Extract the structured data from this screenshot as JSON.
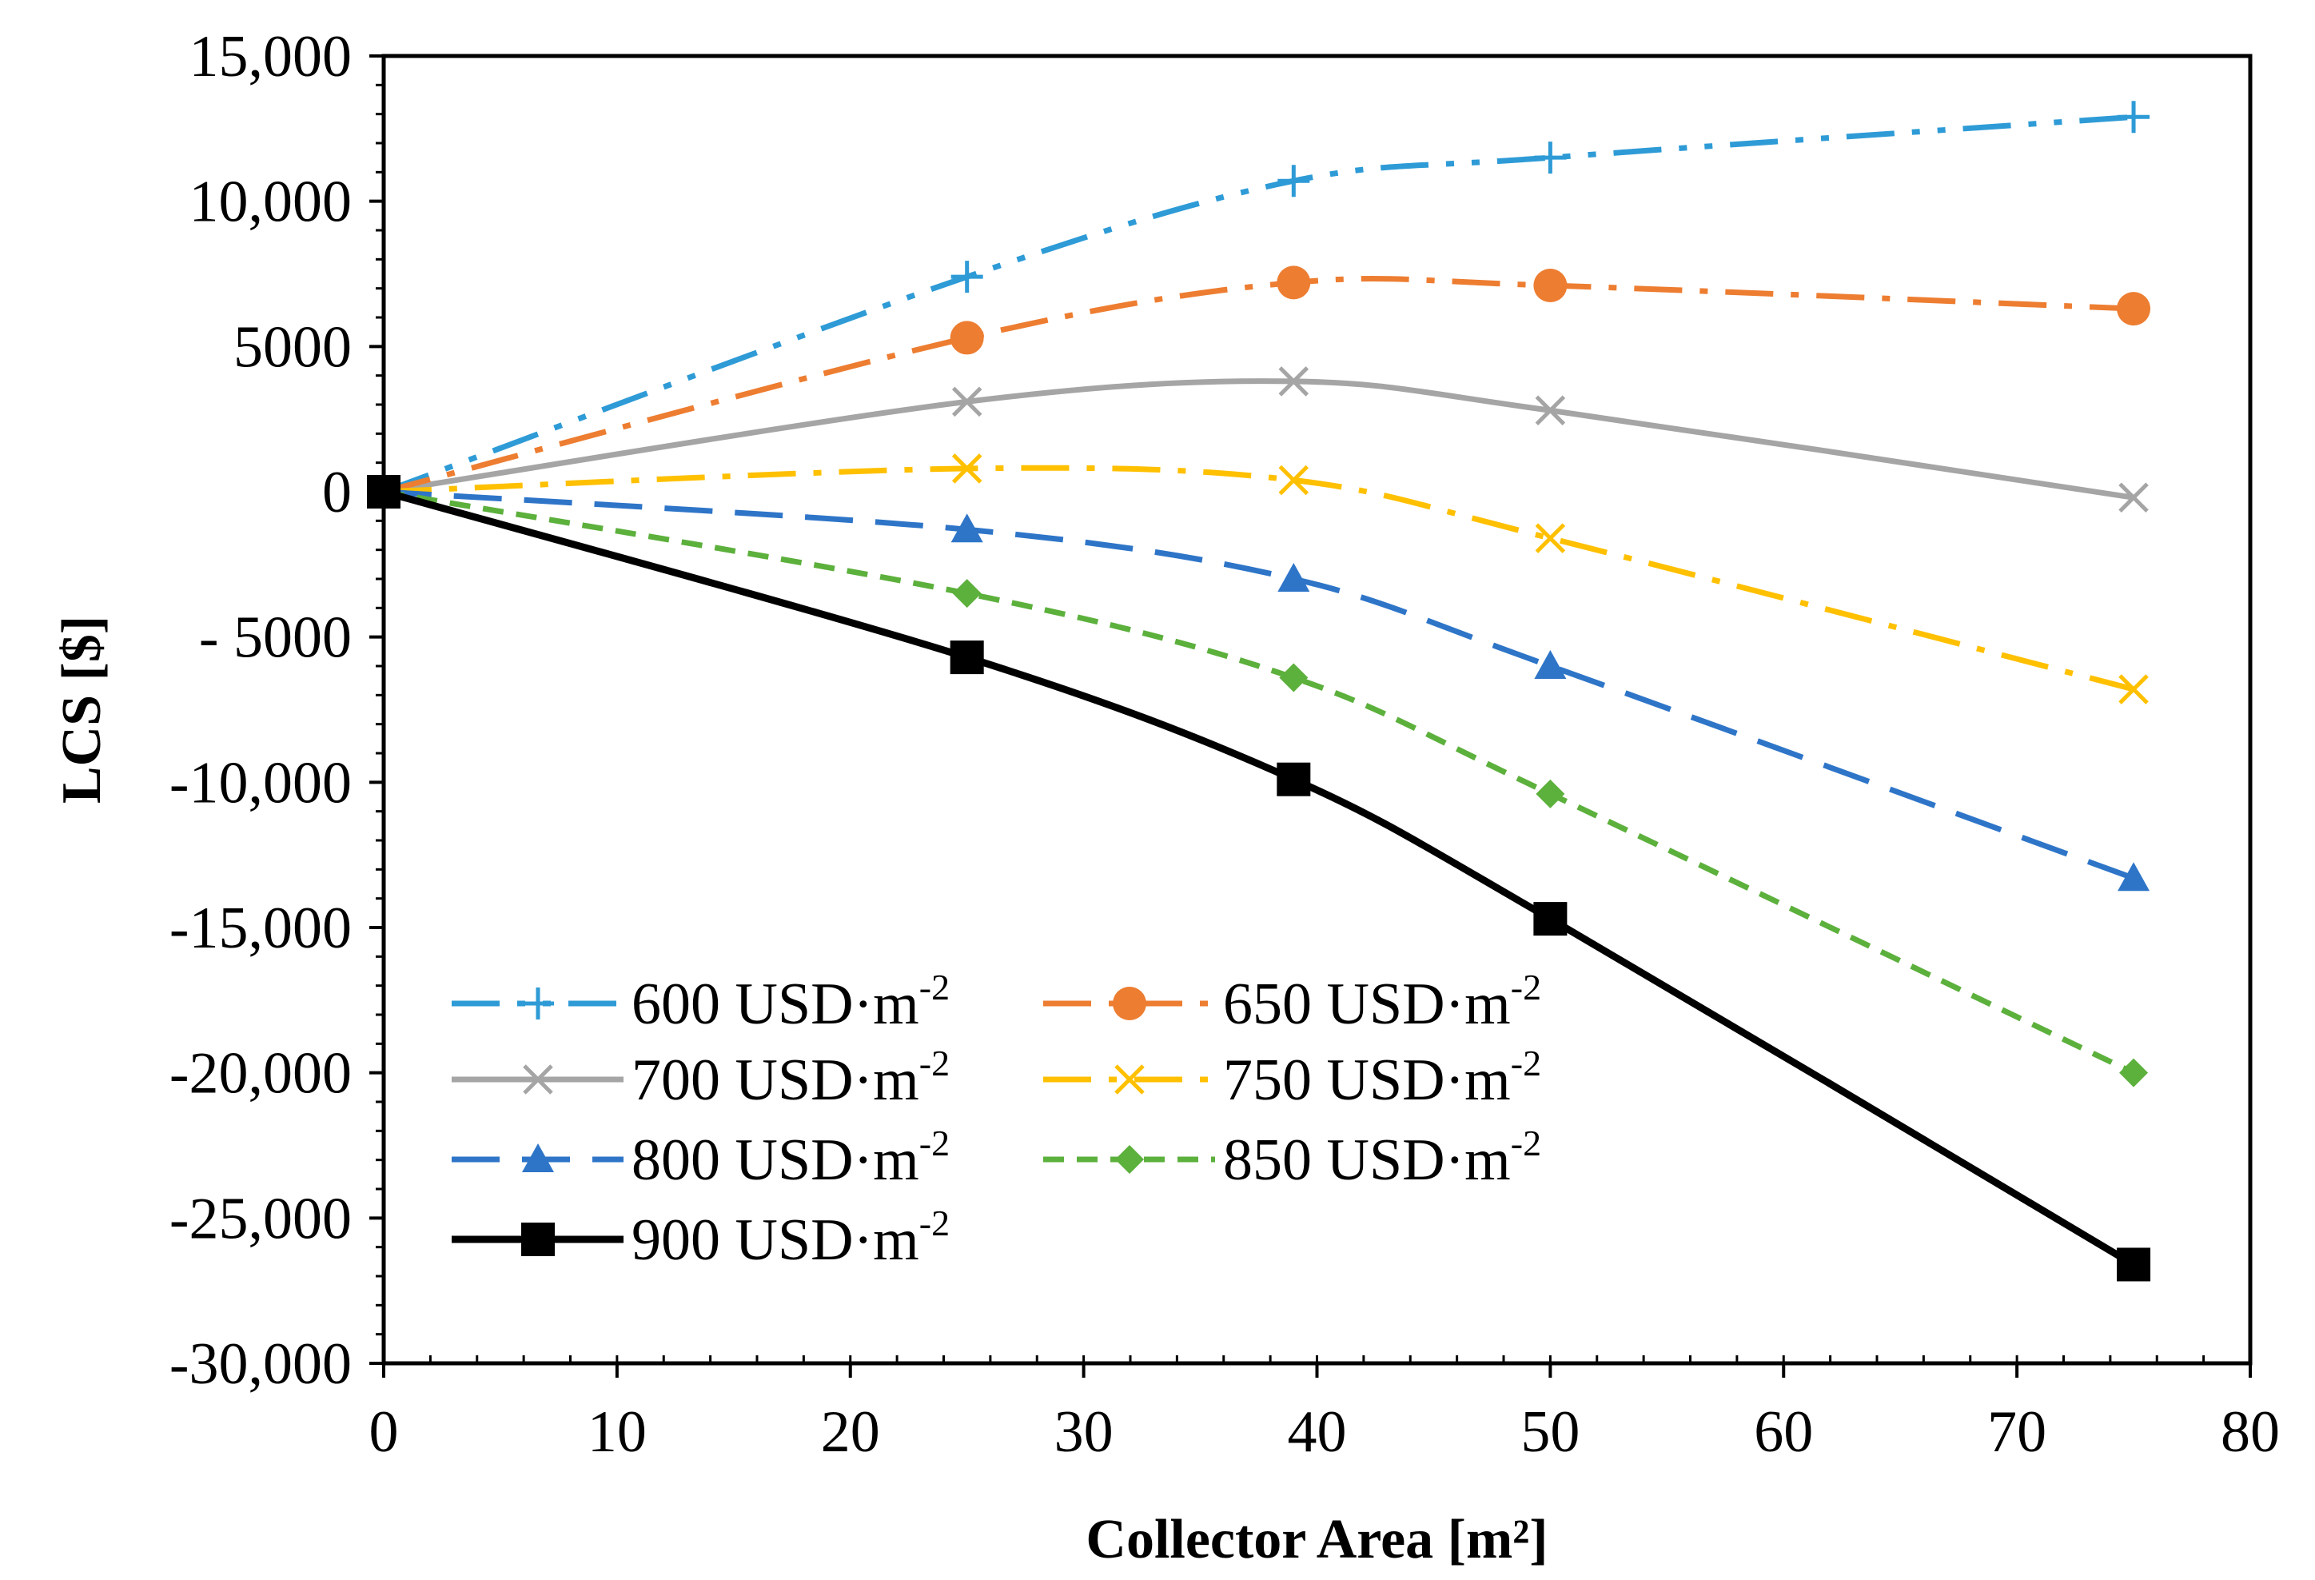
{
  "chart_data": {
    "type": "line",
    "title": "",
    "xlabel": "Collector Area [m²]",
    "ylabel": "LCS [$]",
    "xlim": [
      0,
      80
    ],
    "ylim": [
      -30000,
      15000
    ],
    "grid": false,
    "legend_position": "bottom-left",
    "x": [
      0,
      25,
      39,
      50,
      75
    ],
    "x_ticks": [
      0,
      10,
      20,
      30,
      40,
      50,
      60,
      70,
      80
    ],
    "x_tick_labels": [
      "0",
      "10",
      "20",
      "30",
      "40",
      "50",
      "60",
      "70",
      "80"
    ],
    "y_ticks": [
      15000,
      10000,
      5000,
      0,
      -5000,
      -10000,
      -15000,
      -20000,
      -25000,
      -30000
    ],
    "y_tick_labels": [
      "15,000",
      "10,000",
      "5000",
      "0",
      "- 5000",
      "-10,000",
      "-15,000",
      "-20,000",
      "-25,000",
      "-30,000"
    ],
    "series": [
      {
        "name": "600 USD·m-2",
        "legend_main": "600 USD·m",
        "legend_sup": "-2",
        "color": "#2E9BD6",
        "dash": "dashdotdot",
        "marker": "plus",
        "values": [
          0,
          7400,
          10700,
          11500,
          12900
        ]
      },
      {
        "name": "650 USD·m-2",
        "legend_main": "650 USD·m",
        "legend_sup": "-2",
        "color": "#ED7D31",
        "dash": "dashdot",
        "marker": "circle",
        "values": [
          0,
          5300,
          7200,
          7100,
          6300
        ]
      },
      {
        "name": "700 USD·m-2",
        "legend_main": "700 USD·m",
        "legend_sup": "-2",
        "color": "#A5A5A5",
        "dash": "solid",
        "marker": "x",
        "values": [
          0,
          3100,
          3800,
          2800,
          -200
        ]
      },
      {
        "name": "750 USD·m-2",
        "legend_main": "750 USD·m",
        "legend_sup": "-2",
        "color": "#FFC000",
        "dash": "dashdot",
        "marker": "x",
        "values": [
          0,
          800,
          400,
          -1600,
          -6800
        ]
      },
      {
        "name": "800 USD·m-2",
        "legend_main": "800 USD·m",
        "legend_sup": "-2",
        "color": "#2E75C8",
        "dash": "dash",
        "marker": "triangle",
        "values": [
          0,
          -1300,
          -3000,
          -6000,
          -13300
        ]
      },
      {
        "name": "850 USD·m-2",
        "legend_main": "850 USD·m",
        "legend_sup": "-2",
        "color": "#5CB03C",
        "dash": "shortdash",
        "marker": "diamond",
        "values": [
          0,
          -3500,
          -6400,
          -10400,
          -20000
        ]
      },
      {
        "name": "900 USD·m-2",
        "legend_main": "900 USD·m",
        "legend_sup": "-2",
        "color": "#000000",
        "dash": "solid",
        "marker": "square",
        "values": [
          0,
          -5700,
          -9900,
          -14700,
          -26600
        ]
      }
    ]
  }
}
